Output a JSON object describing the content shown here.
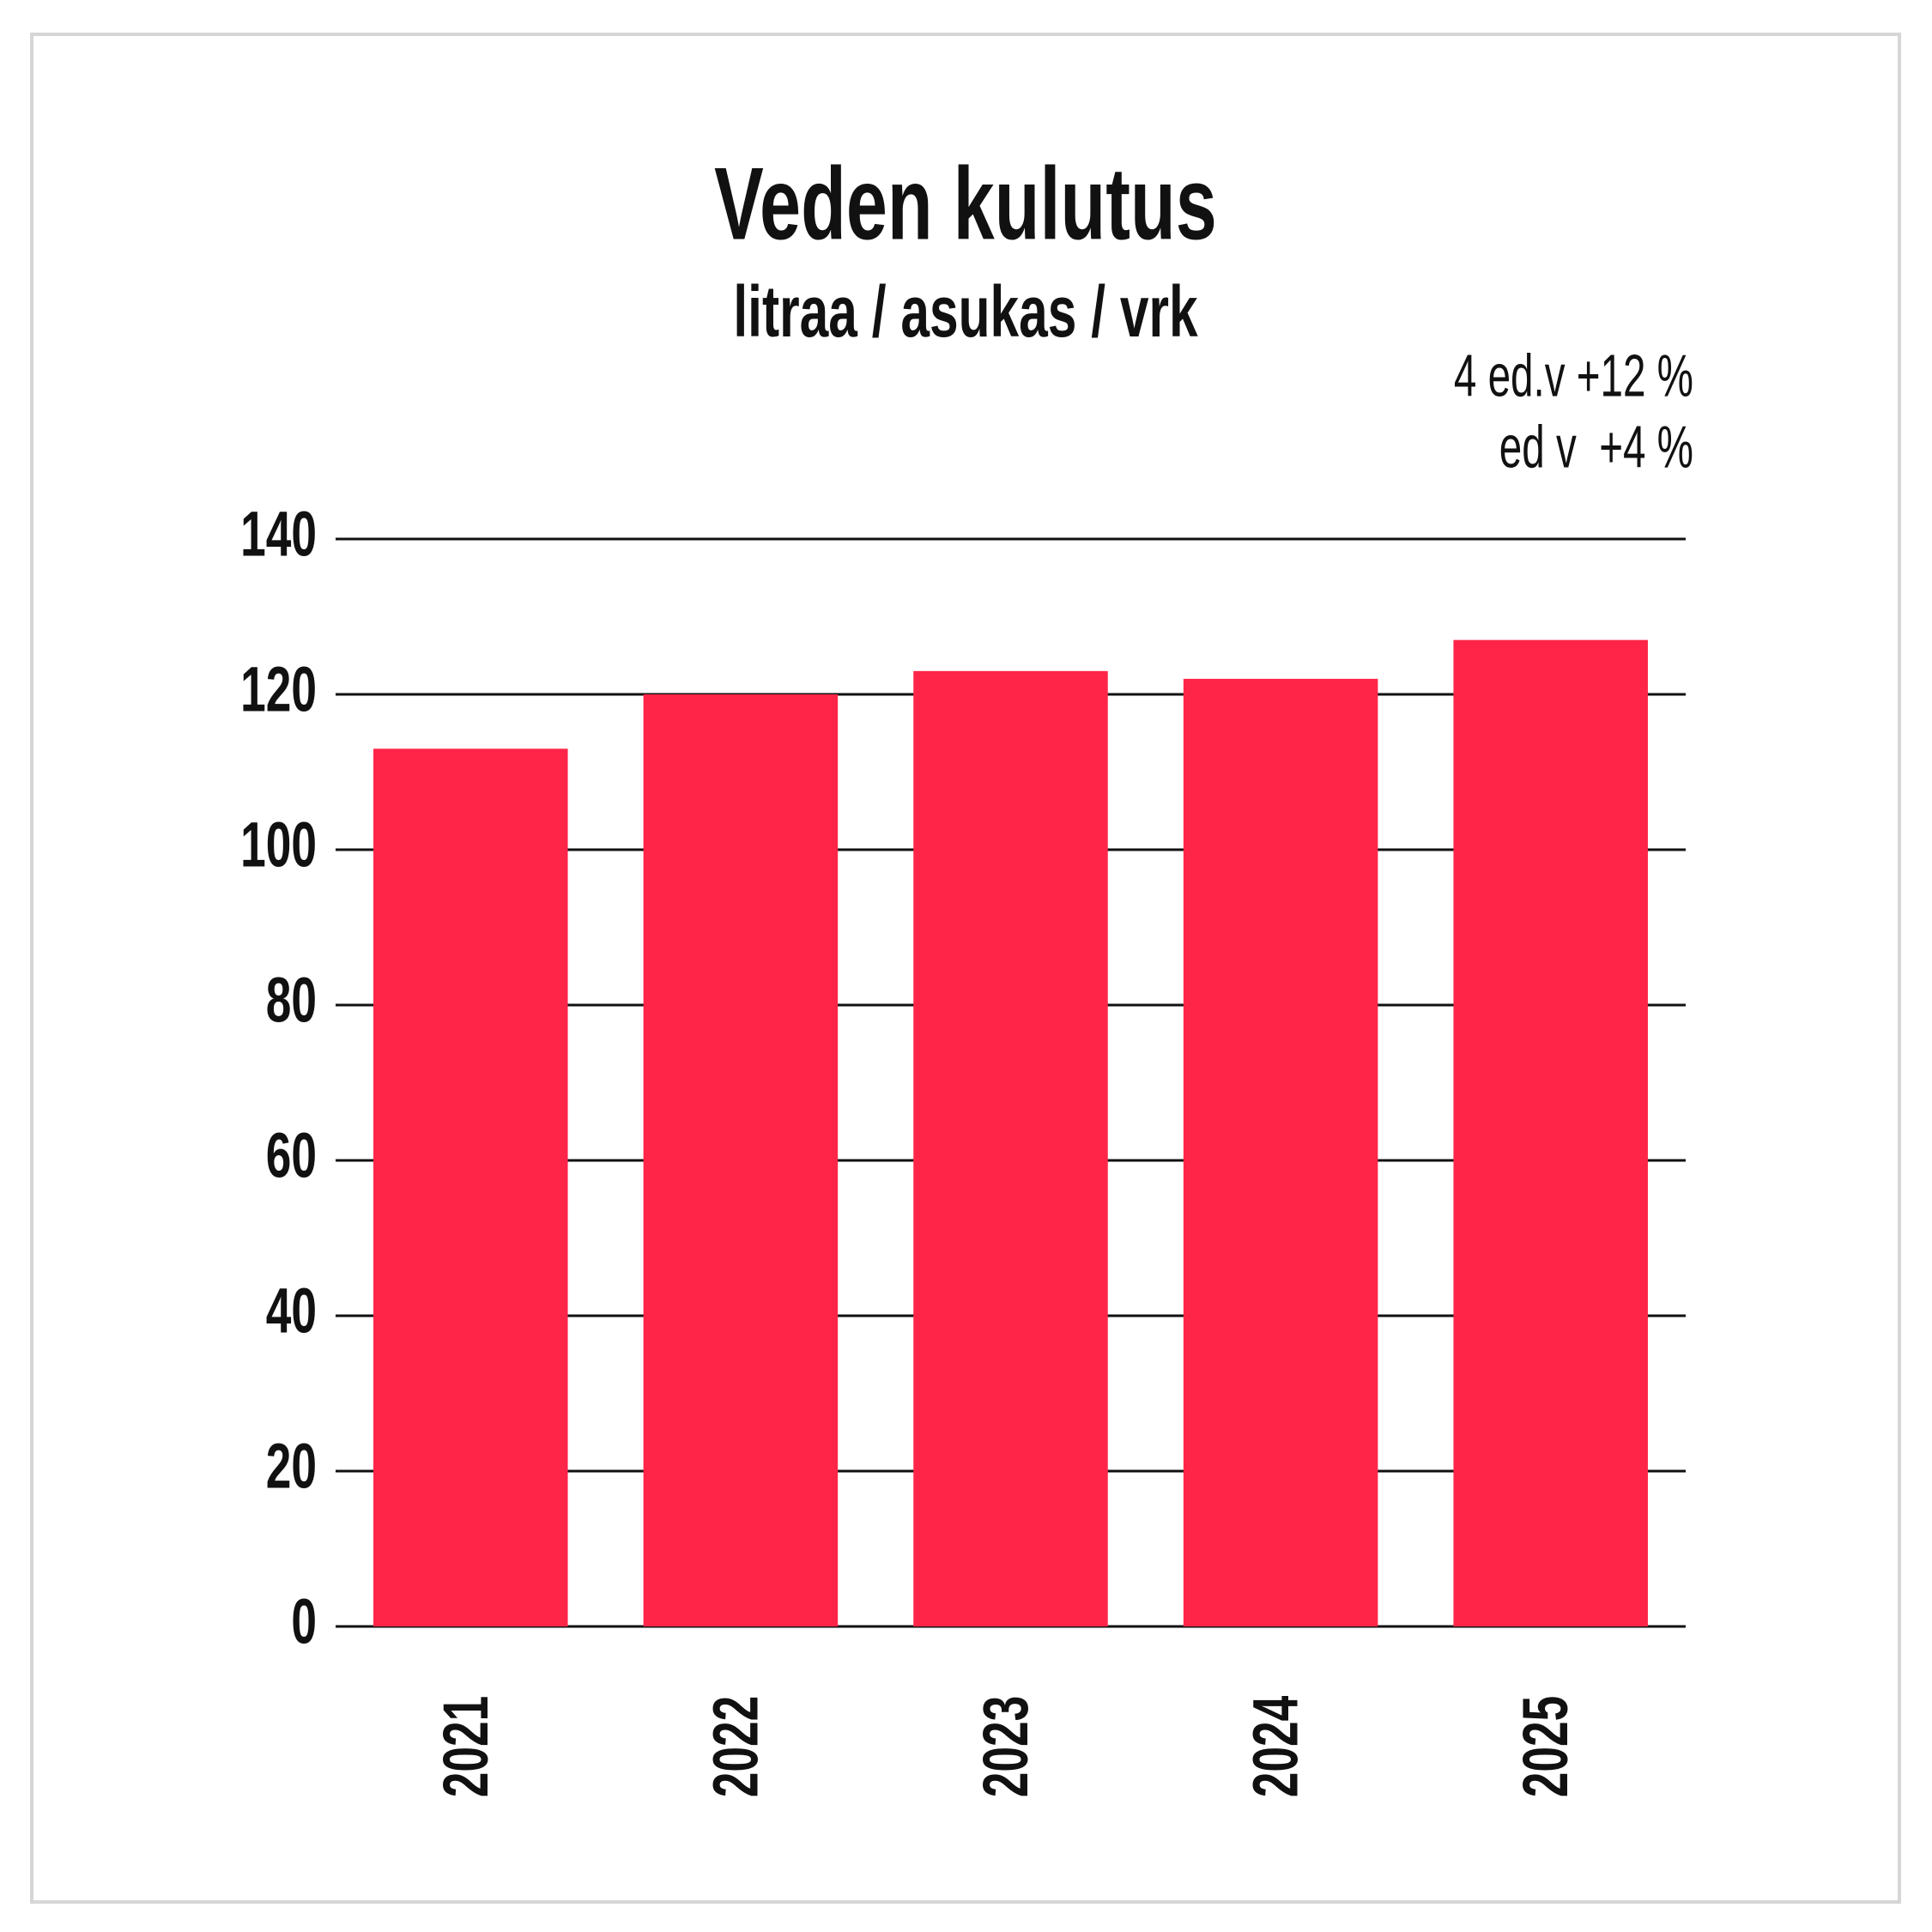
{
  "chart_data": {
    "type": "bar",
    "title": "Veden kulutus",
    "subtitle": "litraa / asukas / vrk",
    "annotations": [
      "4 ed.v +12 %",
      "ed v  +4 %"
    ],
    "categories": [
      "2021",
      "2022",
      "2023",
      "2024",
      "2025"
    ],
    "values": [
      113,
      120,
      123,
      122,
      127
    ],
    "color": "#ff2548",
    "ylim": [
      0,
      140
    ],
    "yticks": [
      0,
      20,
      40,
      60,
      80,
      100,
      120,
      140
    ],
    "grid": true
  }
}
